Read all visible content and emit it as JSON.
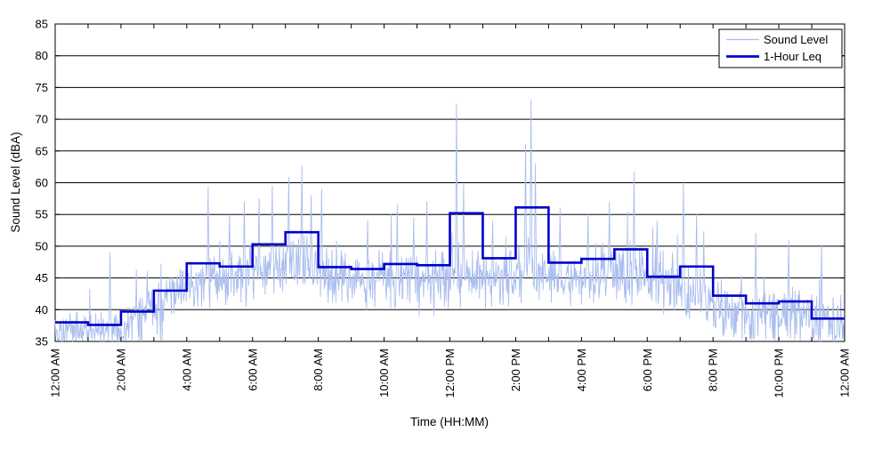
{
  "chart_data": {
    "type": "line",
    "title": "",
    "xlabel": "Time (HH:MM)",
    "ylabel": "Sound Level (dBA)",
    "ylim": [
      35,
      85
    ],
    "ytick_step": 5,
    "xlim_hours": [
      0,
      24
    ],
    "x_major_tick_every_hours": 2,
    "x_minor_tick_every_hours": 1,
    "x_tick_labels": [
      "12:00 AM",
      "2:00 AM",
      "4:00 AM",
      "6:00 AM",
      "8:00 AM",
      "10:00 AM",
      "12:00 PM",
      "2:00 PM",
      "4:00 PM",
      "6:00 PM",
      "8:00 PM",
      "10:00 PM",
      "12:00 AM"
    ],
    "grid": "horizontal-solid",
    "legend_position": "top-right",
    "series": [
      {
        "name": "Sound Level",
        "style": "noisy-line",
        "color": "#a9bdee",
        "stroke_width": 0.9,
        "samples_per_hour": 60,
        "floor": 35,
        "hourly_median": [
          37.2,
          36.6,
          38.8,
          42.0,
          44.5,
          45.0,
          46.5,
          47.5,
          45.0,
          44.5,
          44.5,
          44.5,
          45.5,
          45.0,
          46.0,
          45.0,
          45.5,
          46.0,
          44.0,
          43.0,
          40.5,
          40.0,
          39.5,
          38.0
        ],
        "hourly_spread": [
          1.7,
          1.7,
          2.2,
          2.5,
          2.8,
          3.0,
          3.0,
          3.2,
          3.0,
          2.8,
          3.2,
          3.4,
          3.2,
          3.0,
          3.2,
          3.0,
          3.0,
          3.2,
          3.4,
          3.6,
          3.0,
          3.0,
          3.4,
          3.0
        ],
        "spikes": [
          {
            "t": 1.66,
            "v": 49.0
          },
          {
            "t": 2.8,
            "v": 46.0
          },
          {
            "t": 4.65,
            "v": 59.3
          },
          {
            "t": 5.3,
            "v": 55.0
          },
          {
            "t": 5.75,
            "v": 57.0
          },
          {
            "t": 6.2,
            "v": 57.5
          },
          {
            "t": 6.6,
            "v": 59.5
          },
          {
            "t": 7.1,
            "v": 60.9
          },
          {
            "t": 7.5,
            "v": 62.6
          },
          {
            "t": 7.78,
            "v": 58.0
          },
          {
            "t": 8.1,
            "v": 59.0
          },
          {
            "t": 9.5,
            "v": 54.0
          },
          {
            "t": 10.4,
            "v": 56.5
          },
          {
            "t": 10.9,
            "v": 54.5
          },
          {
            "t": 11.3,
            "v": 57.0
          },
          {
            "t": 12.2,
            "v": 72.4
          },
          {
            "t": 12.42,
            "v": 59.7
          },
          {
            "t": 13.3,
            "v": 54.0
          },
          {
            "t": 14.3,
            "v": 66.0
          },
          {
            "t": 14.47,
            "v": 73.1
          },
          {
            "t": 14.6,
            "v": 63.0
          },
          {
            "t": 15.35,
            "v": 56.0
          },
          {
            "t": 16.2,
            "v": 55.0
          },
          {
            "t": 16.85,
            "v": 57.0
          },
          {
            "t": 17.6,
            "v": 61.7
          },
          {
            "t": 18.3,
            "v": 54.0
          },
          {
            "t": 19.1,
            "v": 60.0
          },
          {
            "t": 19.5,
            "v": 55.0
          },
          {
            "t": 21.3,
            "v": 52.0
          },
          {
            "t": 22.3,
            "v": 50.9
          },
          {
            "t": 23.3,
            "v": 50.0
          }
        ]
      },
      {
        "name": "1-Hour Leq",
        "style": "step",
        "color": "#0000cc",
        "stroke_width": 2.6,
        "hour_values": [
          38.0,
          37.6,
          39.7,
          43.0,
          47.3,
          46.8,
          50.3,
          52.2,
          46.7,
          46.4,
          47.2,
          47.0,
          55.2,
          48.1,
          56.1,
          47.4,
          48.0,
          49.5,
          45.2,
          46.8,
          42.2,
          41.0,
          41.3,
          38.6
        ]
      }
    ],
    "axis_color": "#000000",
    "grid_color": "#000000",
    "background_color": "#ffffff"
  },
  "legend": {
    "entries": [
      {
        "label": "Sound Level"
      },
      {
        "label": "1-Hour Leq"
      }
    ]
  },
  "labels": {
    "xlabel": "Time (HH:MM)",
    "ylabel": "Sound Level (dBA)"
  }
}
